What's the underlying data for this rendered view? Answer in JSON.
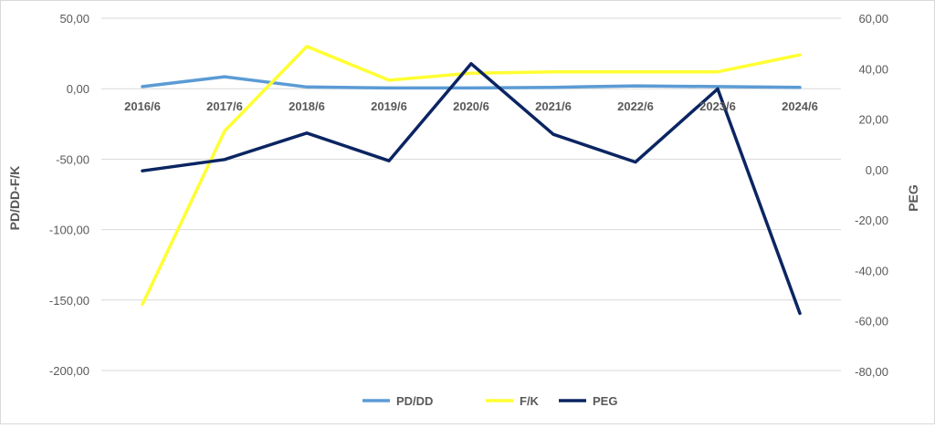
{
  "chart_data": {
    "type": "line",
    "categories": [
      "2016/6",
      "2017/6",
      "2018/6",
      "2019/6",
      "2020/6",
      "2021/6",
      "2022/6",
      "2023/6",
      "2024/6"
    ],
    "series": [
      {
        "name": "PD/DD",
        "axis": "left",
        "color": "#5b9bd5",
        "values": [
          1.5,
          8.5,
          1.2,
          0.5,
          0.5,
          1.0,
          2.0,
          1.5,
          1.0
        ]
      },
      {
        "name": "F/K",
        "axis": "left",
        "color": "#ffff33",
        "values": [
          -153,
          -30,
          30,
          6,
          11,
          12,
          12,
          12,
          24
        ]
      },
      {
        "name": "PEG",
        "axis": "right",
        "color": "#0b2562",
        "values": [
          -0.5,
          4,
          14.5,
          3.5,
          42,
          14,
          3,
          32,
          -57
        ]
      }
    ],
    "ylabel_left": "PD/DD-F/K",
    "ylabel_right": "PEG",
    "ylim_left": [
      -200,
      50
    ],
    "ylim_right": [
      -80,
      60
    ],
    "yticks_left": [
      "50,00",
      "0,00",
      "-50,00",
      "-100,00",
      "-150,00",
      "-200,00"
    ],
    "yticks_right": [
      "60,00",
      "40,00",
      "20,00",
      "0,00",
      "-20,00",
      "-40,00",
      "-60,00",
      "-80,00"
    ],
    "grid": true,
    "legend_position": "bottom"
  }
}
